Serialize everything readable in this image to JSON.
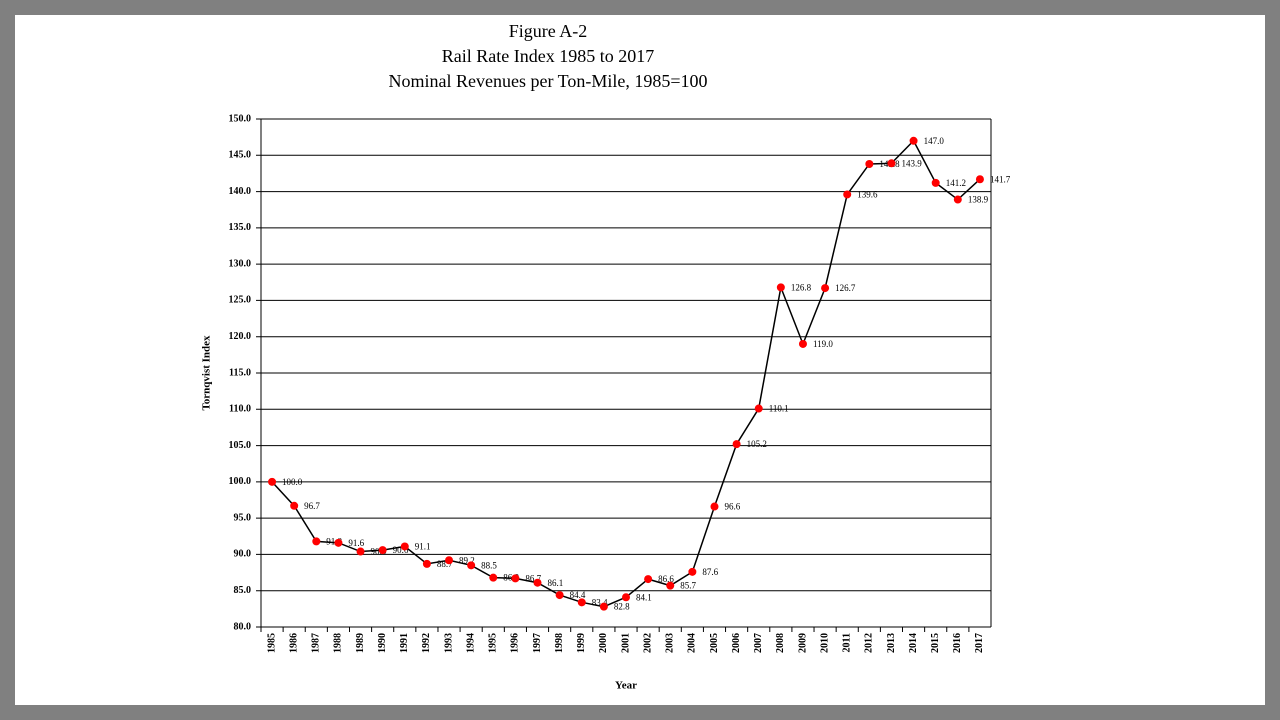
{
  "chart_data": {
    "type": "line",
    "title": [
      "Figure A-2",
      "Rail Rate Index 1985 to 2017",
      "Nominal Revenues per Ton-Mile, 1985=100"
    ],
    "xlabel": "Year",
    "ylabel": "Tornqvist Index",
    "categories": [
      "1985",
      "1986",
      "1987",
      "1988",
      "1989",
      "1990",
      "1991",
      "1992",
      "1993",
      "1994",
      "1995",
      "1996",
      "1997",
      "1998",
      "1999",
      "2000",
      "2001",
      "2002",
      "2003",
      "2004",
      "2005",
      "2006",
      "2007",
      "2008",
      "2009",
      "2010",
      "2011",
      "2012",
      "2013",
      "2014",
      "2015",
      "2016",
      "2017"
    ],
    "series": [
      {
        "name": "Rail Rate Index",
        "color": "#000000",
        "marker_color": "#ff0000",
        "values": [
          100.0,
          96.7,
          91.8,
          91.6,
          90.4,
          90.6,
          91.1,
          88.7,
          89.2,
          88.5,
          86.8,
          86.7,
          86.1,
          84.4,
          83.4,
          82.8,
          84.1,
          86.6,
          85.7,
          87.6,
          96.6,
          105.2,
          110.1,
          126.8,
          119.0,
          126.7,
          139.6,
          143.8,
          143.9,
          147.0,
          141.2,
          138.9,
          141.7
        ],
        "value_labels": [
          "100.0",
          "96.7",
          "91.8",
          "91.6",
          "90.4",
          "90.6",
          "91.1",
          "88.7",
          "89.2",
          "88.5",
          "86.8",
          "86.7",
          "86.1",
          "84.4",
          "83.4",
          "82.8",
          "84.1",
          "86.6",
          "85.7",
          "87.6",
          "96.6",
          "105.2",
          "110.1",
          "126.8",
          "119.0",
          "126.7",
          "139.6",
          "143.8",
          "143.9",
          "147.0",
          "141.2",
          "138.9",
          "141.7"
        ]
      }
    ],
    "ylim": [
      80,
      150
    ],
    "yticks": [
      {
        "value": 80,
        "label": "80.0"
      },
      {
        "value": 85,
        "label": "85.0"
      },
      {
        "value": 90,
        "label": "90.0"
      },
      {
        "value": 95,
        "label": "95.0"
      },
      {
        "value": 100,
        "label": "100.0"
      },
      {
        "value": 105,
        "label": "105.0"
      },
      {
        "value": 110,
        "label": "110.0"
      },
      {
        "value": 115,
        "label": "115.0"
      },
      {
        "value": 120,
        "label": "120.0"
      },
      {
        "value": 125,
        "label": "125.0"
      },
      {
        "value": 130,
        "label": "130.0"
      },
      {
        "value": 135,
        "label": "135.0"
      },
      {
        "value": 140,
        "label": "140.0"
      },
      {
        "value": 145,
        "label": "145.0"
      },
      {
        "value": 150,
        "label": "150.0"
      }
    ],
    "grid": true
  }
}
